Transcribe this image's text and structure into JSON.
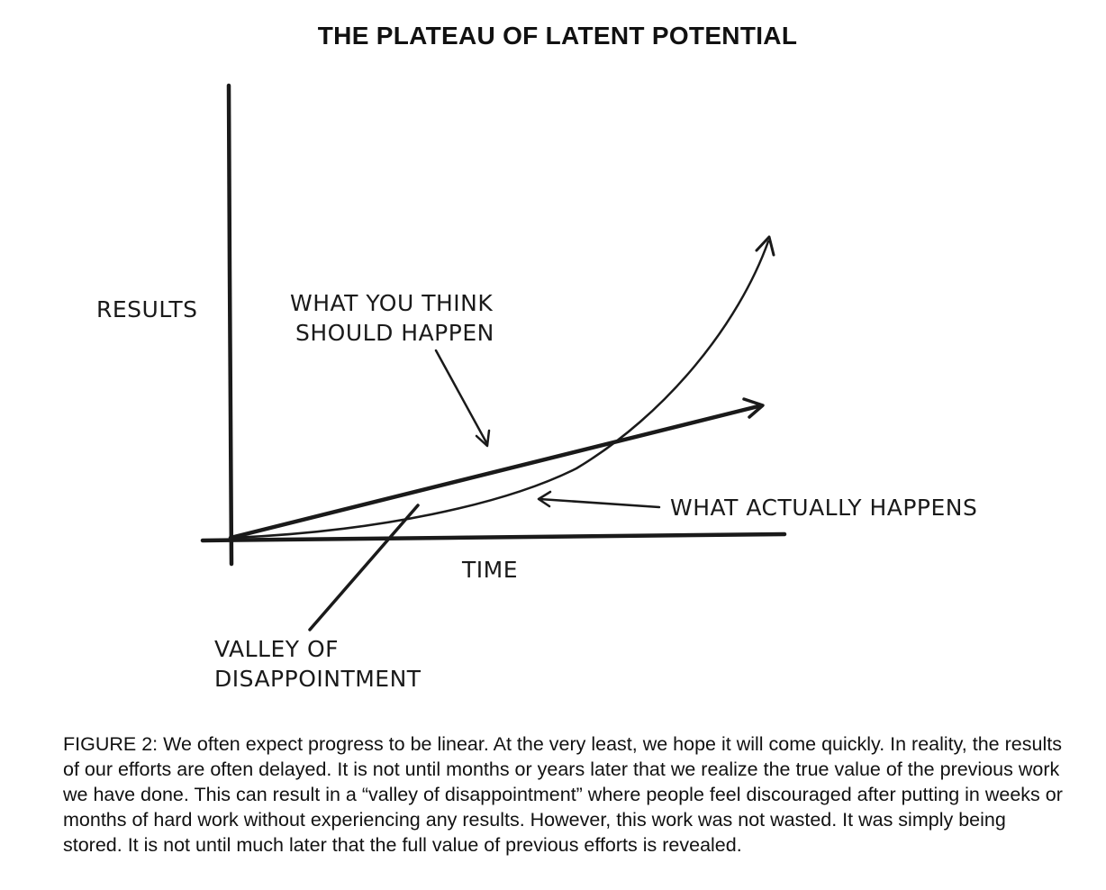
{
  "title": "THE PLATEAU OF LATENT POTENTIAL",
  "labels": {
    "y_axis": "RESULTS",
    "x_axis": "TIME",
    "expected_line_1": "WHAT YOU THINK",
    "expected_line_2": "SHOULD HAPPEN",
    "actual": "WHAT ACTUALLY HAPPENS",
    "valley_line_1": "VALLEY OF",
    "valley_line_2": "DISAPPOINTMENT"
  },
  "caption": "FIGURE 2: We often expect progress to be linear. At the very least, we hope it will come quickly. In reality, the results of our efforts are often delayed. It is not until months or years later that we realize the true value of the previous work we have done. This can result in a “valley of disappointment” where people feel discouraged after putting in weeks or months of hard work without experiencing any results. However, this work was not wasted. It was simply being stored. It is not until much later that the full value of previous efforts is revealed.",
  "colors": {
    "ink": "#1a1a1a",
    "background": "#ffffff"
  }
}
